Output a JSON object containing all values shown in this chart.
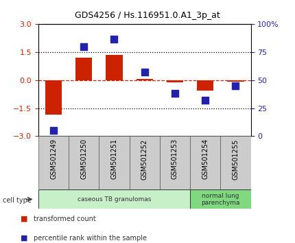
{
  "title": "GDS4256 / Hs.116951.0.A1_3p_at",
  "samples": [
    "GSM501249",
    "GSM501250",
    "GSM501251",
    "GSM501252",
    "GSM501253",
    "GSM501254",
    "GSM501255"
  ],
  "red_values": [
    -1.85,
    1.2,
    1.35,
    0.05,
    -0.12,
    -0.55,
    -0.07
  ],
  "blue_values": [
    5,
    80,
    87,
    57,
    38,
    32,
    45
  ],
  "ylim_left": [
    -3,
    3
  ],
  "ylim_right": [
    0,
    100
  ],
  "left_yticks": [
    -3,
    -1.5,
    0,
    1.5,
    3
  ],
  "right_yticks": [
    0,
    25,
    50,
    75,
    100
  ],
  "right_yticklabels": [
    "0",
    "25",
    "50",
    "75",
    "100%"
  ],
  "cell_type_groups": [
    {
      "label": "caseous TB granulomas",
      "start": 0,
      "end": 5,
      "color": "#c8f0c8"
    },
    {
      "label": "normal lung\nparenchyma",
      "start": 5,
      "end": 7,
      "color": "#80d880"
    }
  ],
  "cell_type_label": "cell type",
  "legend_red": "transformed count",
  "legend_blue": "percentile rank within the sample",
  "red_color": "#cc2200",
  "blue_color": "#2222aa",
  "bar_width": 0.55,
  "dot_size": 45,
  "bg_color": "#ffffff",
  "tick_label_color_left": "#cc2200",
  "tick_label_color_right": "#2222aa",
  "grid_color": "#000000",
  "zero_line_color": "#cc2200",
  "plot_bg": "#ffffff",
  "xtick_area_color": "#cccccc"
}
